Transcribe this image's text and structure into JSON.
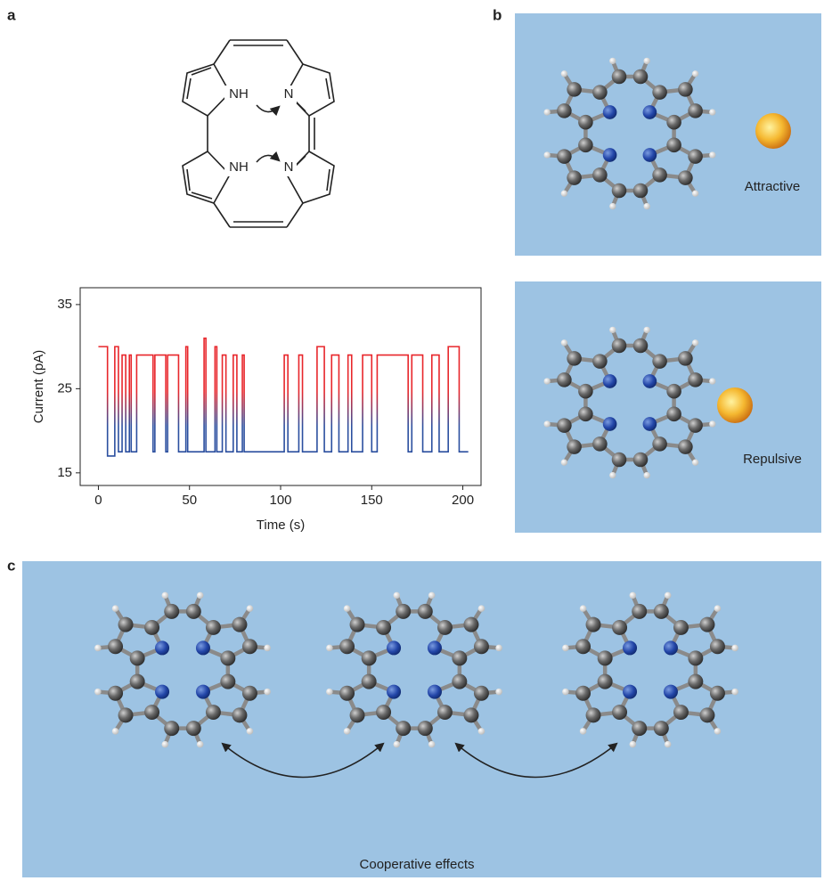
{
  "panel_labels": [
    "a",
    "b",
    "c"
  ],
  "structure": {
    "atom_labels": [
      "NH",
      "N",
      "NH",
      "N"
    ]
  },
  "chart_data": {
    "type": "line",
    "xlabel": "Time (s)",
    "ylabel": "Current (pA)",
    "x": [
      0,
      5,
      5,
      9,
      9,
      11,
      11,
      13,
      13,
      15,
      15,
      17,
      17,
      18,
      18,
      21,
      21,
      30,
      30,
      31,
      31,
      37,
      37,
      38,
      38,
      44,
      44,
      48,
      48,
      49,
      49,
      58,
      58,
      59,
      59,
      64,
      64,
      65,
      65,
      68,
      68,
      70,
      70,
      74,
      74,
      76,
      76,
      79,
      79,
      80,
      80,
      102,
      102,
      104,
      104,
      110,
      110,
      112,
      112,
      120,
      120,
      124,
      124,
      128,
      128,
      132,
      132,
      137,
      137,
      139,
      139,
      145,
      145,
      150,
      150,
      153,
      153,
      170,
      170,
      172,
      172,
      178,
      178,
      183,
      183,
      187,
      187,
      192,
      192,
      198,
      198,
      203
    ],
    "series": [
      {
        "values": [
          30,
          30,
          17,
          17,
          30,
          30,
          17.5,
          17.5,
          29,
          29,
          17.5,
          17.5,
          29,
          29,
          17.5,
          17.5,
          29,
          29,
          17.5,
          17.5,
          29,
          29,
          17.5,
          17.5,
          29,
          29,
          17.5,
          17.5,
          30,
          30,
          17.5,
          17.5,
          31,
          31,
          17.5,
          17.5,
          30,
          30,
          17.5,
          17.5,
          29,
          29,
          17.5,
          17.5,
          29,
          29,
          17.5,
          17.5,
          29,
          29,
          17.5,
          17.5,
          29,
          29,
          17.5,
          17.5,
          29,
          29,
          17.5,
          17.5,
          30,
          30,
          17.5,
          17.5,
          29,
          29,
          17.5,
          17.5,
          29,
          29,
          17.5,
          17.5,
          29,
          29,
          17.5,
          17.5,
          29,
          29,
          17.5,
          17.5,
          29,
          29,
          17.5,
          17.5,
          29,
          29,
          17.5,
          17.5,
          30,
          30,
          17.5,
          17.5
        ],
        "colors": [
          "#e8262b",
          "#2b4f9f"
        ]
      }
    ],
    "xlim": [
      -10,
      210
    ],
    "ylim": [
      13.5,
      37
    ],
    "xticks": [
      0,
      50,
      100,
      150,
      200
    ],
    "yticks": [
      15,
      25,
      35
    ]
  },
  "panel_b": {
    "labels": [
      "Attractive",
      "Repulsive"
    ]
  },
  "panel_c": {
    "label": "Cooperative effects"
  }
}
